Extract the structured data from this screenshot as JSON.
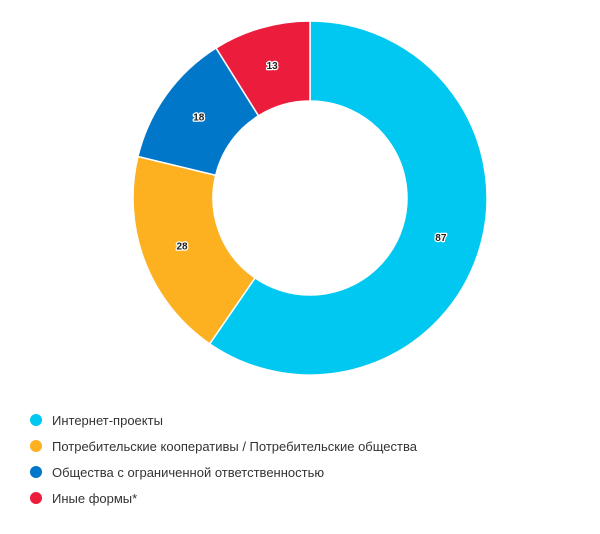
{
  "chart_data": {
    "type": "pie",
    "variant": "donut",
    "title": "",
    "categories": [
      "Интернет-проекты",
      "Потребительские кооперативы / Потребительские общества",
      "Общества с ограниченной ответственностью",
      "Иные формы*"
    ],
    "values": [
      87,
      28,
      18,
      13
    ],
    "data_labels": [
      "87",
      "28",
      "18",
      "13"
    ],
    "colors": [
      "#00C8F0",
      "#FDB020",
      "#0077C8",
      "#EC1C3C"
    ],
    "legend_position": "bottom-left",
    "start_angle": "top",
    "direction": "clockwise"
  }
}
